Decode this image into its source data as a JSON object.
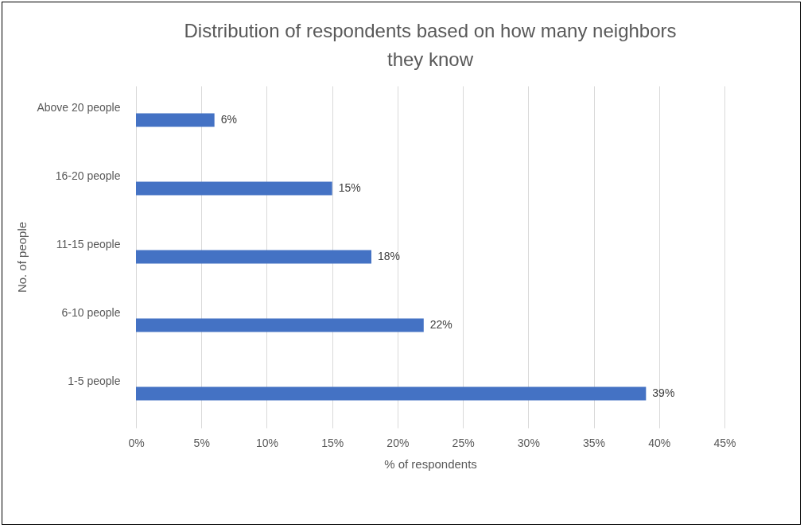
{
  "chart_data": {
    "type": "bar",
    "orientation": "horizontal",
    "title": "Distribution of respondents based on how many neighbors they know",
    "xlabel": "% of respondents",
    "ylabel": "No. of people",
    "categories": [
      "Above 20 people",
      "16-20 people",
      "11-15 people",
      "6-10 people",
      "1-5 people"
    ],
    "values": [
      6,
      15,
      18,
      22,
      39
    ],
    "color": "#4472c4",
    "value_labels": [
      "6%",
      "15%",
      "18%",
      "22%",
      "39%"
    ],
    "xlim": [
      0,
      45
    ],
    "xticks": [
      {
        "value": 0,
        "label": "0%"
      },
      {
        "value": 5,
        "label": "5%"
      },
      {
        "value": 10,
        "label": "10%"
      },
      {
        "value": 15,
        "label": "15%"
      },
      {
        "value": 20,
        "label": "20%"
      },
      {
        "value": 25,
        "label": "25%"
      },
      {
        "value": 30,
        "label": "30%"
      },
      {
        "value": 35,
        "label": "35%"
      },
      {
        "value": 40,
        "label": "40%"
      },
      {
        "value": 45,
        "label": "45%"
      }
    ],
    "grid": "x"
  }
}
